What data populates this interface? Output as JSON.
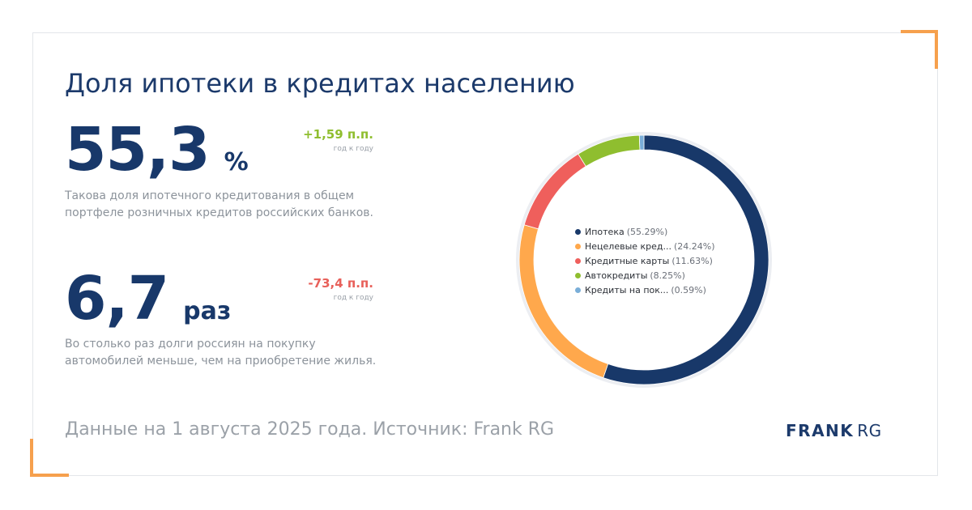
{
  "title": "Доля ипотеки в кредитах населению",
  "stat1": {
    "value": "55,3",
    "unit": "%",
    "change": "+1,59 п.п.",
    "change_note": "год к году",
    "description": "Такова доля ипотечного кредитования в общем портфеле розничных кредитов российских банков."
  },
  "stat2": {
    "value": "6,7",
    "unit": "раз",
    "change": "-73,4 п.п.",
    "change_note": "год к году",
    "description": "Во столько раз долги россиян на покупку автомобилей меньше, чем на приобретение жилья."
  },
  "footer": "Данные на 1 августа 2025 года. Источник: Frank RG",
  "logo": {
    "bold": "FRANK",
    "light": "RG"
  },
  "colors": {
    "accent_orange": "#f6a04d",
    "positive": "#8fbe2f",
    "negative": "#e8605a",
    "navy": "#18386a"
  },
  "chart_data": {
    "type": "pie",
    "variant": "donut",
    "legend_position": "center",
    "slices": [
      {
        "label": "Ипотека",
        "pct_label": "(55.29%)",
        "value": 55.29,
        "color": "#183869"
      },
      {
        "label": "Нецелевые кред...",
        "pct_label": "(24.24%)",
        "value": 24.24,
        "color": "#ffa84c"
      },
      {
        "label": "Кредитные карты",
        "pct_label": "(11.63%)",
        "value": 11.63,
        "color": "#ef5f5c"
      },
      {
        "label": "Автокредиты",
        "pct_label": "(8.25%)",
        "value": 8.25,
        "color": "#8fbe2f"
      },
      {
        "label": "Кредиты на пок...",
        "pct_label": "(0.59%)",
        "value": 0.59,
        "color": "#7aaed8"
      }
    ]
  }
}
